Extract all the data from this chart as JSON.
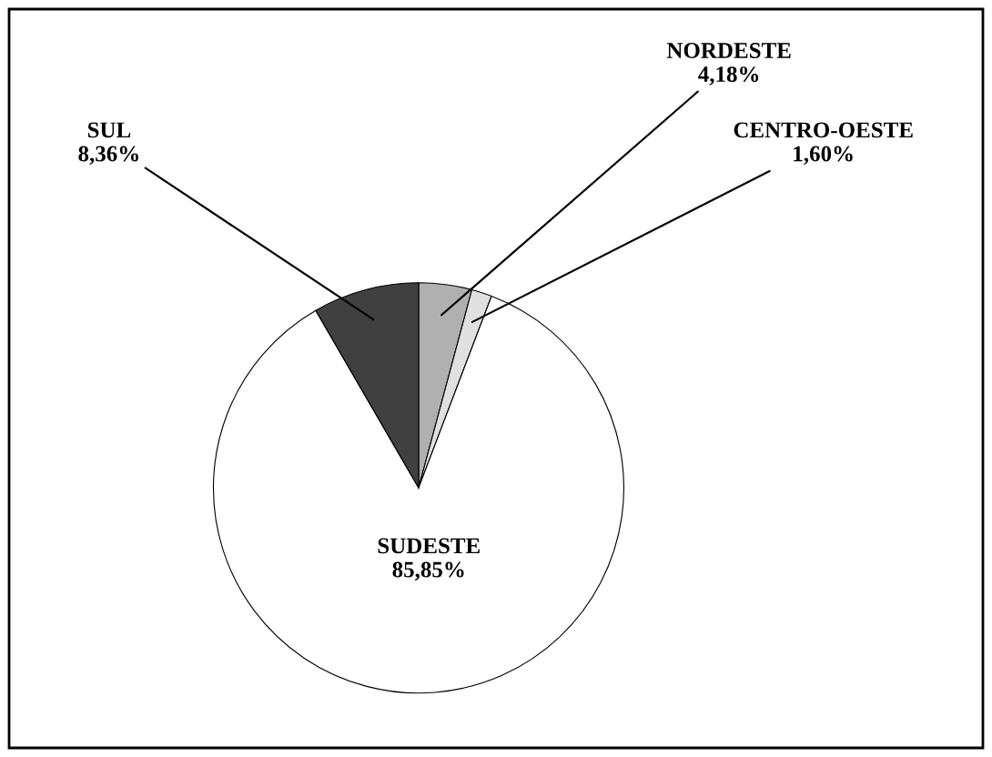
{
  "chart_data": {
    "type": "pie",
    "categories": [
      "NORDESTE",
      "CENTRO-OESTE",
      "SUDESTE",
      "SUL"
    ],
    "values": [
      4.18,
      1.6,
      85.85,
      8.36
    ],
    "value_labels": [
      "4,18%",
      "1,60%",
      "85,85%",
      "8,36%"
    ],
    "colors": [
      "#b0b0b0",
      "#e0e0e0",
      "#ffffff",
      "#404040"
    ],
    "legend": false
  }
}
